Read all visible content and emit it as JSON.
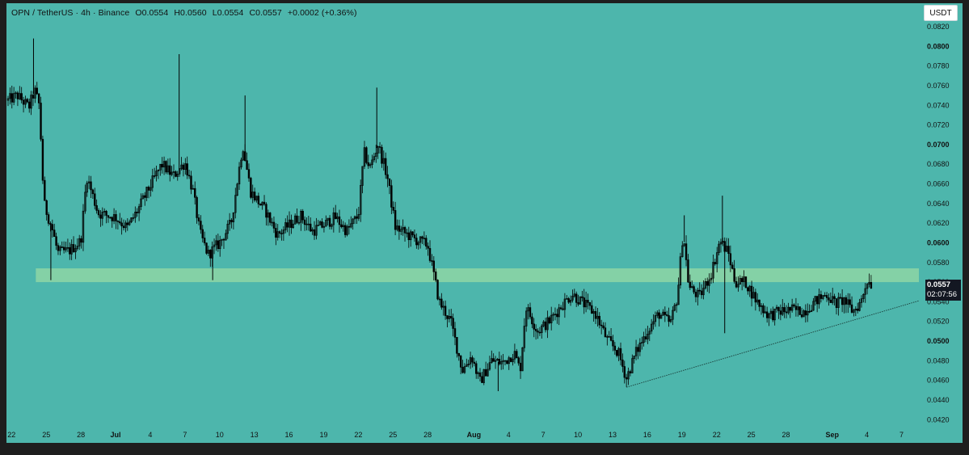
{
  "legend": {
    "symbol": "OPN / TetherUS · 4h · Binance",
    "open": "O0.0554",
    "high": "H0.0560",
    "low": "L0.0554",
    "close": "C0.0557",
    "change": "+0.0002 (+0.36%)"
  },
  "currency_button": "USDT",
  "last_price": {
    "value": "0.0557",
    "countdown": "02:07:56"
  },
  "colors": {
    "background": "#4db6ac",
    "candle": "#000000",
    "zone": "#8ed6a4",
    "frame": "#1e1e1e"
  },
  "chart_data": {
    "type": "candlestick",
    "title": "",
    "xlabel": "",
    "ylabel": "",
    "ylim": [
      0.0412,
      0.0834
    ],
    "y_ticks": [
      "0.0420",
      "0.0440",
      "0.0460",
      "0.0480",
      "0.0500",
      "0.0520",
      "0.0540",
      "0.0560",
      "0.0580",
      "0.0600",
      "0.0620",
      "0.0640",
      "0.0660",
      "0.0680",
      "0.0700",
      "0.0720",
      "0.0740",
      "0.0760",
      "0.0780",
      "0.0800",
      "0.0820"
    ],
    "y_ticks_bold": [
      "0.0500",
      "0.0600",
      "0.0700",
      "0.0800"
    ],
    "x_ticks": [
      {
        "label": "22",
        "day": -9
      },
      {
        "label": "25",
        "day": -6
      },
      {
        "label": "28",
        "day": -3
      },
      {
        "label": "Jul",
        "day": 0
      },
      {
        "label": "4",
        "day": 3
      },
      {
        "label": "7",
        "day": 6
      },
      {
        "label": "10",
        "day": 9
      },
      {
        "label": "13",
        "day": 12
      },
      {
        "label": "16",
        "day": 15
      },
      {
        "label": "19",
        "day": 18
      },
      {
        "label": "22",
        "day": 21
      },
      {
        "label": "25",
        "day": 24
      },
      {
        "label": "28",
        "day": 27
      },
      {
        "label": "Aug",
        "day": 31
      },
      {
        "label": "4",
        "day": 34
      },
      {
        "label": "7",
        "day": 37
      },
      {
        "label": "10",
        "day": 40
      },
      {
        "label": "13",
        "day": 43
      },
      {
        "label": "16",
        "day": 46
      },
      {
        "label": "19",
        "day": 49
      },
      {
        "label": "22",
        "day": 52
      },
      {
        "label": "25",
        "day": 55
      },
      {
        "label": "28",
        "day": 58
      },
      {
        "label": "Sep",
        "day": 62
      },
      {
        "label": "4",
        "day": 65
      },
      {
        "label": "7",
        "day": 68
      }
    ],
    "xlim_days": [
      -9.3,
      69.5
    ],
    "support_zone": {
      "from": 0.056,
      "to": 0.0574
    },
    "trendline": {
      "from": {
        "day": 44.2,
        "price": 0.0453
      },
      "to": {
        "day": 69.5,
        "price": 0.0541
      }
    },
    "price_path": [
      {
        "day": -9.3,
        "price": 0.0745
      },
      {
        "day": -8.5,
        "price": 0.075
      },
      {
        "day": -7.5,
        "price": 0.0738
      },
      {
        "day": -7.0,
        "price": 0.0755
      },
      {
        "day": -6.6,
        "price": 0.074
      },
      {
        "day": -6.2,
        "price": 0.064
      },
      {
        "day": -5.5,
        "price": 0.0615
      },
      {
        "day": -5.0,
        "price": 0.059
      },
      {
        "day": -4.0,
        "price": 0.0592
      },
      {
        "day": -3.0,
        "price": 0.0602
      },
      {
        "day": -2.5,
        "price": 0.0668
      },
      {
        "day": -1.5,
        "price": 0.063
      },
      {
        "day": 0.0,
        "price": 0.0626
      },
      {
        "day": 1.0,
        "price": 0.0615
      },
      {
        "day": 2.0,
        "price": 0.0635
      },
      {
        "day": 3.0,
        "price": 0.0658
      },
      {
        "day": 4.0,
        "price": 0.068
      },
      {
        "day": 5.0,
        "price": 0.0668
      },
      {
        "day": 6.0,
        "price": 0.0682
      },
      {
        "day": 6.7,
        "price": 0.0652
      },
      {
        "day": 7.3,
        "price": 0.061
      },
      {
        "day": 8.0,
        "price": 0.0588
      },
      {
        "day": 9.0,
        "price": 0.06
      },
      {
        "day": 10.0,
        "price": 0.062
      },
      {
        "day": 11.0,
        "price": 0.07
      },
      {
        "day": 11.7,
        "price": 0.0652
      },
      {
        "day": 13.0,
        "price": 0.0632
      },
      {
        "day": 14.0,
        "price": 0.0608
      },
      {
        "day": 15.0,
        "price": 0.0618
      },
      {
        "day": 16.0,
        "price": 0.0628
      },
      {
        "day": 17.0,
        "price": 0.0612
      },
      {
        "day": 18.0,
        "price": 0.0618
      },
      {
        "day": 19.0,
        "price": 0.0626
      },
      {
        "day": 20.0,
        "price": 0.0612
      },
      {
        "day": 21.0,
        "price": 0.0628
      },
      {
        "day": 21.5,
        "price": 0.0692
      },
      {
        "day": 22.0,
        "price": 0.0676
      },
      {
        "day": 22.7,
        "price": 0.07
      },
      {
        "day": 23.5,
        "price": 0.0668
      },
      {
        "day": 24.2,
        "price": 0.0616
      },
      {
        "day": 25.0,
        "price": 0.061
      },
      {
        "day": 26.0,
        "price": 0.0603
      },
      {
        "day": 27.0,
        "price": 0.0598
      },
      {
        "day": 27.4,
        "price": 0.0575
      },
      {
        "day": 28.0,
        "price": 0.054
      },
      {
        "day": 29.0,
        "price": 0.052
      },
      {
        "day": 30.0,
        "price": 0.047
      },
      {
        "day": 30.8,
        "price": 0.0485
      },
      {
        "day": 31.5,
        "price": 0.0458
      },
      {
        "day": 32.5,
        "price": 0.048
      },
      {
        "day": 33.5,
        "price": 0.0478
      },
      {
        "day": 34.5,
        "price": 0.0488
      },
      {
        "day": 35.0,
        "price": 0.047
      },
      {
        "day": 35.5,
        "price": 0.0535
      },
      {
        "day": 36.5,
        "price": 0.051
      },
      {
        "day": 37.5,
        "price": 0.052
      },
      {
        "day": 38.5,
        "price": 0.0535
      },
      {
        "day": 39.5,
        "price": 0.0548
      },
      {
        "day": 40.5,
        "price": 0.0538
      },
      {
        "day": 41.5,
        "price": 0.0528
      },
      {
        "day": 42.5,
        "price": 0.0502
      },
      {
        "day": 43.5,
        "price": 0.0488
      },
      {
        "day": 44.2,
        "price": 0.0462
      },
      {
        "day": 45.0,
        "price": 0.0488
      },
      {
        "day": 46.0,
        "price": 0.051
      },
      {
        "day": 47.0,
        "price": 0.0528
      },
      {
        "day": 48.0,
        "price": 0.0518
      },
      {
        "day": 48.6,
        "price": 0.0545
      },
      {
        "day": 49.1,
        "price": 0.0612
      },
      {
        "day": 49.6,
        "price": 0.0555
      },
      {
        "day": 50.5,
        "price": 0.0545
      },
      {
        "day": 51.5,
        "price": 0.0568
      },
      {
        "day": 52.3,
        "price": 0.0602
      },
      {
        "day": 53.0,
        "price": 0.059
      },
      {
        "day": 53.6,
        "price": 0.056
      },
      {
        "day": 54.5,
        "price": 0.056
      },
      {
        "day": 55.5,
        "price": 0.054
      },
      {
        "day": 56.5,
        "price": 0.0526
      },
      {
        "day": 57.5,
        "price": 0.053
      },
      {
        "day": 58.5,
        "price": 0.0532
      },
      {
        "day": 59.5,
        "price": 0.053
      },
      {
        "day": 60.5,
        "price": 0.054
      },
      {
        "day": 61.5,
        "price": 0.0548
      },
      {
        "day": 62.3,
        "price": 0.0538
      },
      {
        "day": 63.0,
        "price": 0.0542
      },
      {
        "day": 63.8,
        "price": 0.053
      },
      {
        "day": 64.5,
        "price": 0.054
      },
      {
        "day": 65.0,
        "price": 0.0562
      },
      {
        "day": 65.5,
        "price": 0.0557
      }
    ],
    "wick_spikes": [
      {
        "day": -7.1,
        "price": 0.0808
      },
      {
        "day": 5.5,
        "price": 0.0792
      },
      {
        "day": 11.2,
        "price": 0.075
      },
      {
        "day": 22.6,
        "price": 0.0758
      },
      {
        "day": 52.5,
        "price": 0.0648
      },
      {
        "day": 49.2,
        "price": 0.0628
      },
      {
        "day": -5.6,
        "price": 0.0562
      },
      {
        "day": 8.4,
        "price": 0.0562
      },
      {
        "day": 52.7,
        "price": 0.0508
      },
      {
        "day": 33.1,
        "price": 0.0449
      }
    ]
  }
}
